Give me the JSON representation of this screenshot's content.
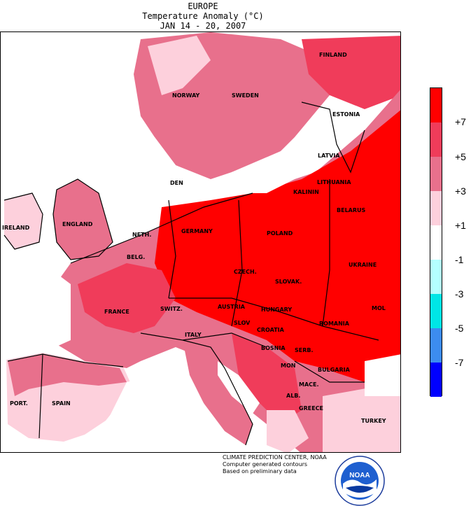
{
  "header": {
    "region": "EUROPE",
    "subtitle": "Temperature Anomaly (°C)",
    "dates": "JAN 14 - 20, 2007"
  },
  "legend": {
    "labels": [
      "+7",
      "+5",
      "+3",
      "+1",
      "-1",
      "-3",
      "-5",
      "-7"
    ],
    "colors": [
      "#ff0000",
      "#f03c5a",
      "#e8708c",
      "#fdd0dc",
      "#ffffff",
      "#b4ffff",
      "#00e6e6",
      "#3c8cf0",
      "#0000ff"
    ]
  },
  "countries": [
    {
      "key": "finland",
      "label": "FINLAND"
    },
    {
      "key": "norway",
      "label": "NORWAY"
    },
    {
      "key": "sweden",
      "label": "SWEDEN"
    },
    {
      "key": "estonia",
      "label": "ESTONIA"
    },
    {
      "key": "latvia",
      "label": "LATVIA"
    },
    {
      "key": "lithuania",
      "label": "LITHUANIA"
    },
    {
      "key": "kaliningrad",
      "label": "KALININ"
    },
    {
      "key": "belarus",
      "label": "BELARUS"
    },
    {
      "key": "denmark",
      "label": "DEN"
    },
    {
      "key": "ireland",
      "label": "IRELAND"
    },
    {
      "key": "england",
      "label": "ENGLAND"
    },
    {
      "key": "netherlands",
      "label": "NETH."
    },
    {
      "key": "germany",
      "label": "GERMANY"
    },
    {
      "key": "poland",
      "label": "POLAND"
    },
    {
      "key": "belgium",
      "label": "BELG."
    },
    {
      "key": "czech",
      "label": "CZECH."
    },
    {
      "key": "slovakia",
      "label": "SLOVAK."
    },
    {
      "key": "ukraine",
      "label": "UKRAINE"
    },
    {
      "key": "france",
      "label": "FRANCE"
    },
    {
      "key": "switzerland",
      "label": "SWITZ."
    },
    {
      "key": "austria",
      "label": "AUSTRIA"
    },
    {
      "key": "hungary",
      "label": "HUNGARY"
    },
    {
      "key": "moldova",
      "label": "MOL"
    },
    {
      "key": "slovenia",
      "label": "SLOV"
    },
    {
      "key": "croatia",
      "label": "CROATIA"
    },
    {
      "key": "romania",
      "label": "ROMANIA"
    },
    {
      "key": "italy",
      "label": "ITALY"
    },
    {
      "key": "bosnia",
      "label": "BOSNIA"
    },
    {
      "key": "serbia",
      "label": "SERB."
    },
    {
      "key": "montenegro",
      "label": "MON"
    },
    {
      "key": "bulgaria",
      "label": "BULGARIA"
    },
    {
      "key": "macedonia",
      "label": "MACE."
    },
    {
      "key": "albania",
      "label": "ALB."
    },
    {
      "key": "portugal",
      "label": "PORT."
    },
    {
      "key": "spain",
      "label": "SPAIN"
    },
    {
      "key": "greece",
      "label": "GREECE"
    },
    {
      "key": "turkey",
      "label": "TURKEY"
    }
  ],
  "credits": {
    "line1": "CLIMATE PREDICTION CENTER, NOAA",
    "line2": "Computer generated contours",
    "line3": "Based on preliminary data"
  },
  "logo": {
    "text": "NOAA"
  }
}
